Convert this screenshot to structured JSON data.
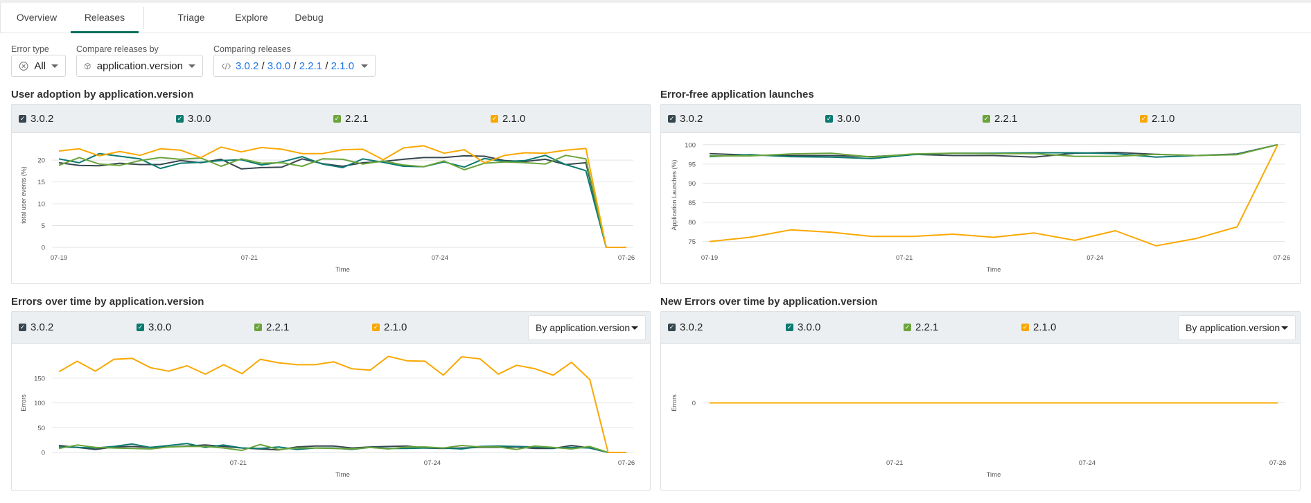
{
  "tabs": [
    {
      "label": "Overview"
    },
    {
      "label": "Releases",
      "active": true
    },
    {
      "label": "Triage"
    },
    {
      "label": "Explore"
    },
    {
      "label": "Debug"
    }
  ],
  "filters": {
    "error_type": {
      "label": "Error type",
      "value": "All",
      "icon": "x-circle-icon"
    },
    "compare_by": {
      "label": "Compare releases by",
      "value": "application.version",
      "icon": "cube-icon"
    },
    "comparing": {
      "label": "Comparing releases",
      "icon": "code-icon",
      "versions": [
        "3.0.2",
        "3.0.0",
        "2.2.1",
        "2.1.0"
      ],
      "sep": " / "
    }
  },
  "colors": {
    "3.0.2": "#37474f",
    "3.0.0": "#0b7a70",
    "2.2.1": "#6aa43b",
    "2.1.0": "#f9a800",
    "accent": "#0a6e5c",
    "link": "#1a73e8"
  },
  "legend": [
    {
      "label": "3.0.2",
      "checked": true
    },
    {
      "label": "3.0.0",
      "checked": true
    },
    {
      "label": "2.2.1",
      "checked": true
    },
    {
      "label": "2.1.0",
      "checked": true
    }
  ],
  "panels": [
    {
      "title": "User adoption by application.version"
    },
    {
      "title": "Error-free application launches"
    },
    {
      "title": "Errors over time by application.version",
      "dropdown": "By application.version"
    },
    {
      "title": "New Errors over time by application.version",
      "dropdown": "By application.version"
    }
  ],
  "chart_data": [
    {
      "type": "line",
      "xlabel": "Time",
      "ylabel": "total user events (%)",
      "ylim": [
        0,
        24
      ],
      "yticks": [
        0,
        5,
        10,
        15,
        20
      ],
      "xticks": [
        {
          "at": 0,
          "label": "07-19"
        },
        {
          "at": 9.4,
          "label": "07-21"
        },
        {
          "at": 18.8,
          "label": "07-24"
        },
        {
          "at": 28,
          "label": "07-26"
        }
      ],
      "series": [
        {
          "name": "3.0.2",
          "values": [
            19.4,
            18.8,
            18.7,
            19.3,
            19.0,
            19.0,
            19.9,
            19.4,
            20.2,
            18.0,
            18.3,
            18.4,
            20.3,
            19.2,
            18.6,
            19.4,
            19.7,
            20.2,
            20.6,
            20.6,
            21.0,
            20.9,
            19.9,
            19.7,
            20.2,
            19.0,
            19.4,
            0,
            0
          ]
        },
        {
          "name": "3.0.0",
          "values": [
            20.3,
            19.4,
            21.5,
            20.9,
            20.3,
            18.1,
            19.3,
            19.5,
            19.9,
            20.1,
            18.9,
            19.6,
            20.8,
            19.1,
            18.3,
            20.3,
            19.5,
            18.6,
            18.5,
            19.6,
            18.4,
            20.4,
            19.7,
            19.9,
            21.1,
            19.0,
            17.6,
            0,
            0
          ]
        },
        {
          "name": "2.2.1",
          "values": [
            18.8,
            20.6,
            19.1,
            18.8,
            19.9,
            20.6,
            20.2,
            20.5,
            18.6,
            20.3,
            19.3,
            19.4,
            18.6,
            20.3,
            20.2,
            19.1,
            19.8,
            18.9,
            18.5,
            19.8,
            17.8,
            19.3,
            19.6,
            19.4,
            19.1,
            21.1,
            20.3,
            0,
            0
          ]
        },
        {
          "name": "2.1.0",
          "values": [
            22.1,
            22.6,
            21.0,
            22.0,
            21.1,
            22.6,
            22.3,
            20.6,
            23.0,
            21.9,
            22.9,
            22.5,
            21.5,
            21.5,
            22.4,
            22.5,
            20.1,
            22.8,
            23.3,
            21.6,
            22.4,
            19.4,
            21.1,
            21.7,
            21.6,
            22.3,
            22.7,
            0,
            0
          ]
        }
      ]
    },
    {
      "type": "line",
      "xlabel": "Time",
      "ylabel": "Application Launches (%)",
      "ylim": [
        73.5,
        100.5
      ],
      "yticks": [
        75,
        80,
        85,
        90,
        95,
        100
      ],
      "xticks": [
        {
          "at": 0,
          "label": "07-19"
        },
        {
          "at": 4.8,
          "label": "07-21"
        },
        {
          "at": 9.5,
          "label": "07-24"
        },
        {
          "at": 14.1,
          "label": "07-26"
        }
      ],
      "series": [
        {
          "name": "3.0.2",
          "values": [
            97.7,
            97.3,
            97.2,
            97.2,
            96.9,
            97.5,
            97.2,
            97.2,
            96.8,
            97.8,
            98.0,
            97.5,
            97.2,
            97.6,
            100
          ]
        },
        {
          "name": "3.0.0",
          "values": [
            96.9,
            97.4,
            96.9,
            96.8,
            96.4,
            97.4,
            97.8,
            97.8,
            97.9,
            97.9,
            97.7,
            96.8,
            97.2,
            97.5,
            100
          ]
        },
        {
          "name": "2.2.1",
          "values": [
            97.1,
            97.1,
            97.6,
            97.8,
            96.8,
            97.6,
            97.8,
            97.7,
            97.7,
            97.0,
            97.0,
            97.5,
            97.2,
            97.4,
            100
          ]
        },
        {
          "name": "2.1.0",
          "values": [
            75.0,
            76.1,
            78.0,
            77.4,
            76.3,
            76.3,
            76.9,
            76.1,
            77.2,
            75.3,
            77.8,
            73.9,
            75.8,
            78.8,
            100
          ]
        }
      ]
    },
    {
      "type": "line",
      "xlabel": "Time",
      "ylabel": "Errors",
      "ylim": [
        0,
        200
      ],
      "yticks": [
        0,
        50,
        100,
        150
      ],
      "xticks": [
        {
          "at": 9.8,
          "label": "07-21"
        },
        {
          "at": 20.4,
          "label": "07-24"
        },
        {
          "at": 31,
          "label": "07-26"
        }
      ],
      "series": [
        {
          "name": "3.0.2",
          "values": [
            14,
            10,
            6,
            11,
            12,
            10,
            11,
            13,
            15,
            12,
            9,
            7,
            5,
            11,
            13,
            13,
            9,
            11,
            12,
            13,
            9,
            8,
            9,
            10,
            10,
            11,
            8,
            8,
            14,
            9,
            0,
            0
          ]
        },
        {
          "name": "3.0.0",
          "values": [
            11,
            10,
            9,
            12,
            17,
            10,
            14,
            18,
            10,
            15,
            9,
            8,
            11,
            6,
            9,
            9,
            6,
            10,
            8,
            8,
            9,
            9,
            7,
            12,
            13,
            12,
            11,
            9,
            10,
            9,
            0,
            0
          ]
        },
        {
          "name": "2.2.1",
          "values": [
            8,
            15,
            10,
            9,
            8,
            7,
            11,
            12,
            12,
            9,
            4,
            16,
            6,
            9,
            9,
            8,
            7,
            10,
            7,
            11,
            11,
            9,
            14,
            11,
            11,
            6,
            13,
            10,
            7,
            12,
            0,
            0
          ]
        },
        {
          "name": "2.1.0",
          "values": [
            163,
            184,
            164,
            188,
            190,
            171,
            164,
            175,
            158,
            177,
            159,
            188,
            181,
            177,
            177,
            183,
            169,
            166,
            194,
            185,
            184,
            156,
            193,
            189,
            158,
            176,
            169,
            156,
            182,
            147,
            0,
            0
          ]
        }
      ]
    },
    {
      "type": "line",
      "xlabel": "Time",
      "ylabel": "Errors",
      "ylim": [
        -1,
        1
      ],
      "yticks": [
        0
      ],
      "xticks": [
        {
          "at": 10.1,
          "label": "07-21"
        },
        {
          "at": 20.6,
          "label": "07-24"
        },
        {
          "at": 31,
          "label": "07-26"
        }
      ],
      "series": [
        {
          "name": "3.0.2",
          "values": [
            0,
            0,
            0,
            0,
            0,
            0,
            0,
            0,
            0,
            0,
            0,
            0,
            0,
            0,
            0,
            0,
            0,
            0,
            0,
            0,
            0,
            0,
            0,
            0,
            0,
            0,
            0,
            0,
            0,
            0,
            0,
            0
          ]
        },
        {
          "name": "3.0.0",
          "values": [
            0,
            0,
            0,
            0,
            0,
            0,
            0,
            0,
            0,
            0,
            0,
            0,
            0,
            0,
            0,
            0,
            0,
            0,
            0,
            0,
            0,
            0,
            0,
            0,
            0,
            0,
            0,
            0,
            0,
            0,
            0,
            0
          ]
        },
        {
          "name": "2.2.1",
          "values": [
            0,
            0,
            0,
            0,
            0,
            0,
            0,
            0,
            0,
            0,
            0,
            0,
            0,
            0,
            0,
            0,
            0,
            0,
            0,
            0,
            0,
            0,
            0,
            0,
            0,
            0,
            0,
            0,
            0,
            0,
            0,
            0
          ]
        },
        {
          "name": "2.1.0",
          "values": [
            0,
            0,
            0,
            0,
            0,
            0,
            0,
            0,
            0,
            0,
            0,
            0,
            0,
            0,
            0,
            0,
            0,
            0,
            0,
            0,
            0,
            0,
            0,
            0,
            0,
            0,
            0,
            0,
            0,
            0,
            0,
            0
          ]
        }
      ]
    }
  ]
}
